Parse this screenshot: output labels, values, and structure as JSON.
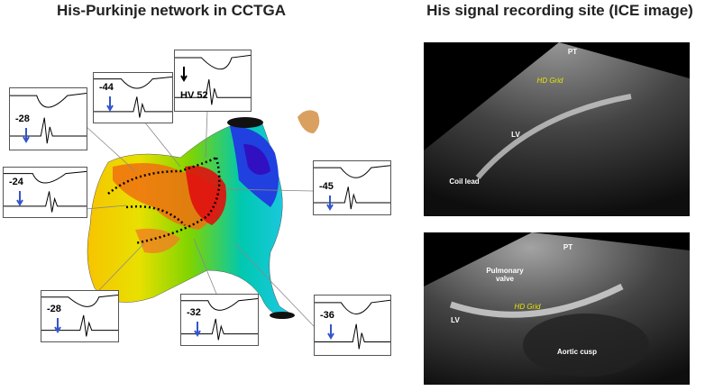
{
  "header": {
    "left_title": "His-Purkinje network in CCTGA",
    "right_title": "His signal recording site (ICE image)"
  },
  "egm_panels": [
    {
      "label": "-28"
    },
    {
      "label": "-44"
    },
    {
      "label": "HV 52"
    },
    {
      "label": "-24"
    },
    {
      "label": "-45"
    },
    {
      "label": "-28"
    },
    {
      "label": "-32"
    },
    {
      "label": "-36"
    }
  ],
  "ice_images": [
    {
      "labels": [
        "PT",
        "HD Grid",
        "LV",
        "Coil lead"
      ]
    },
    {
      "labels": [
        "PT",
        "Pulmonary valve",
        "HD Grid",
        "LV",
        "Aortic cusp"
      ]
    }
  ]
}
